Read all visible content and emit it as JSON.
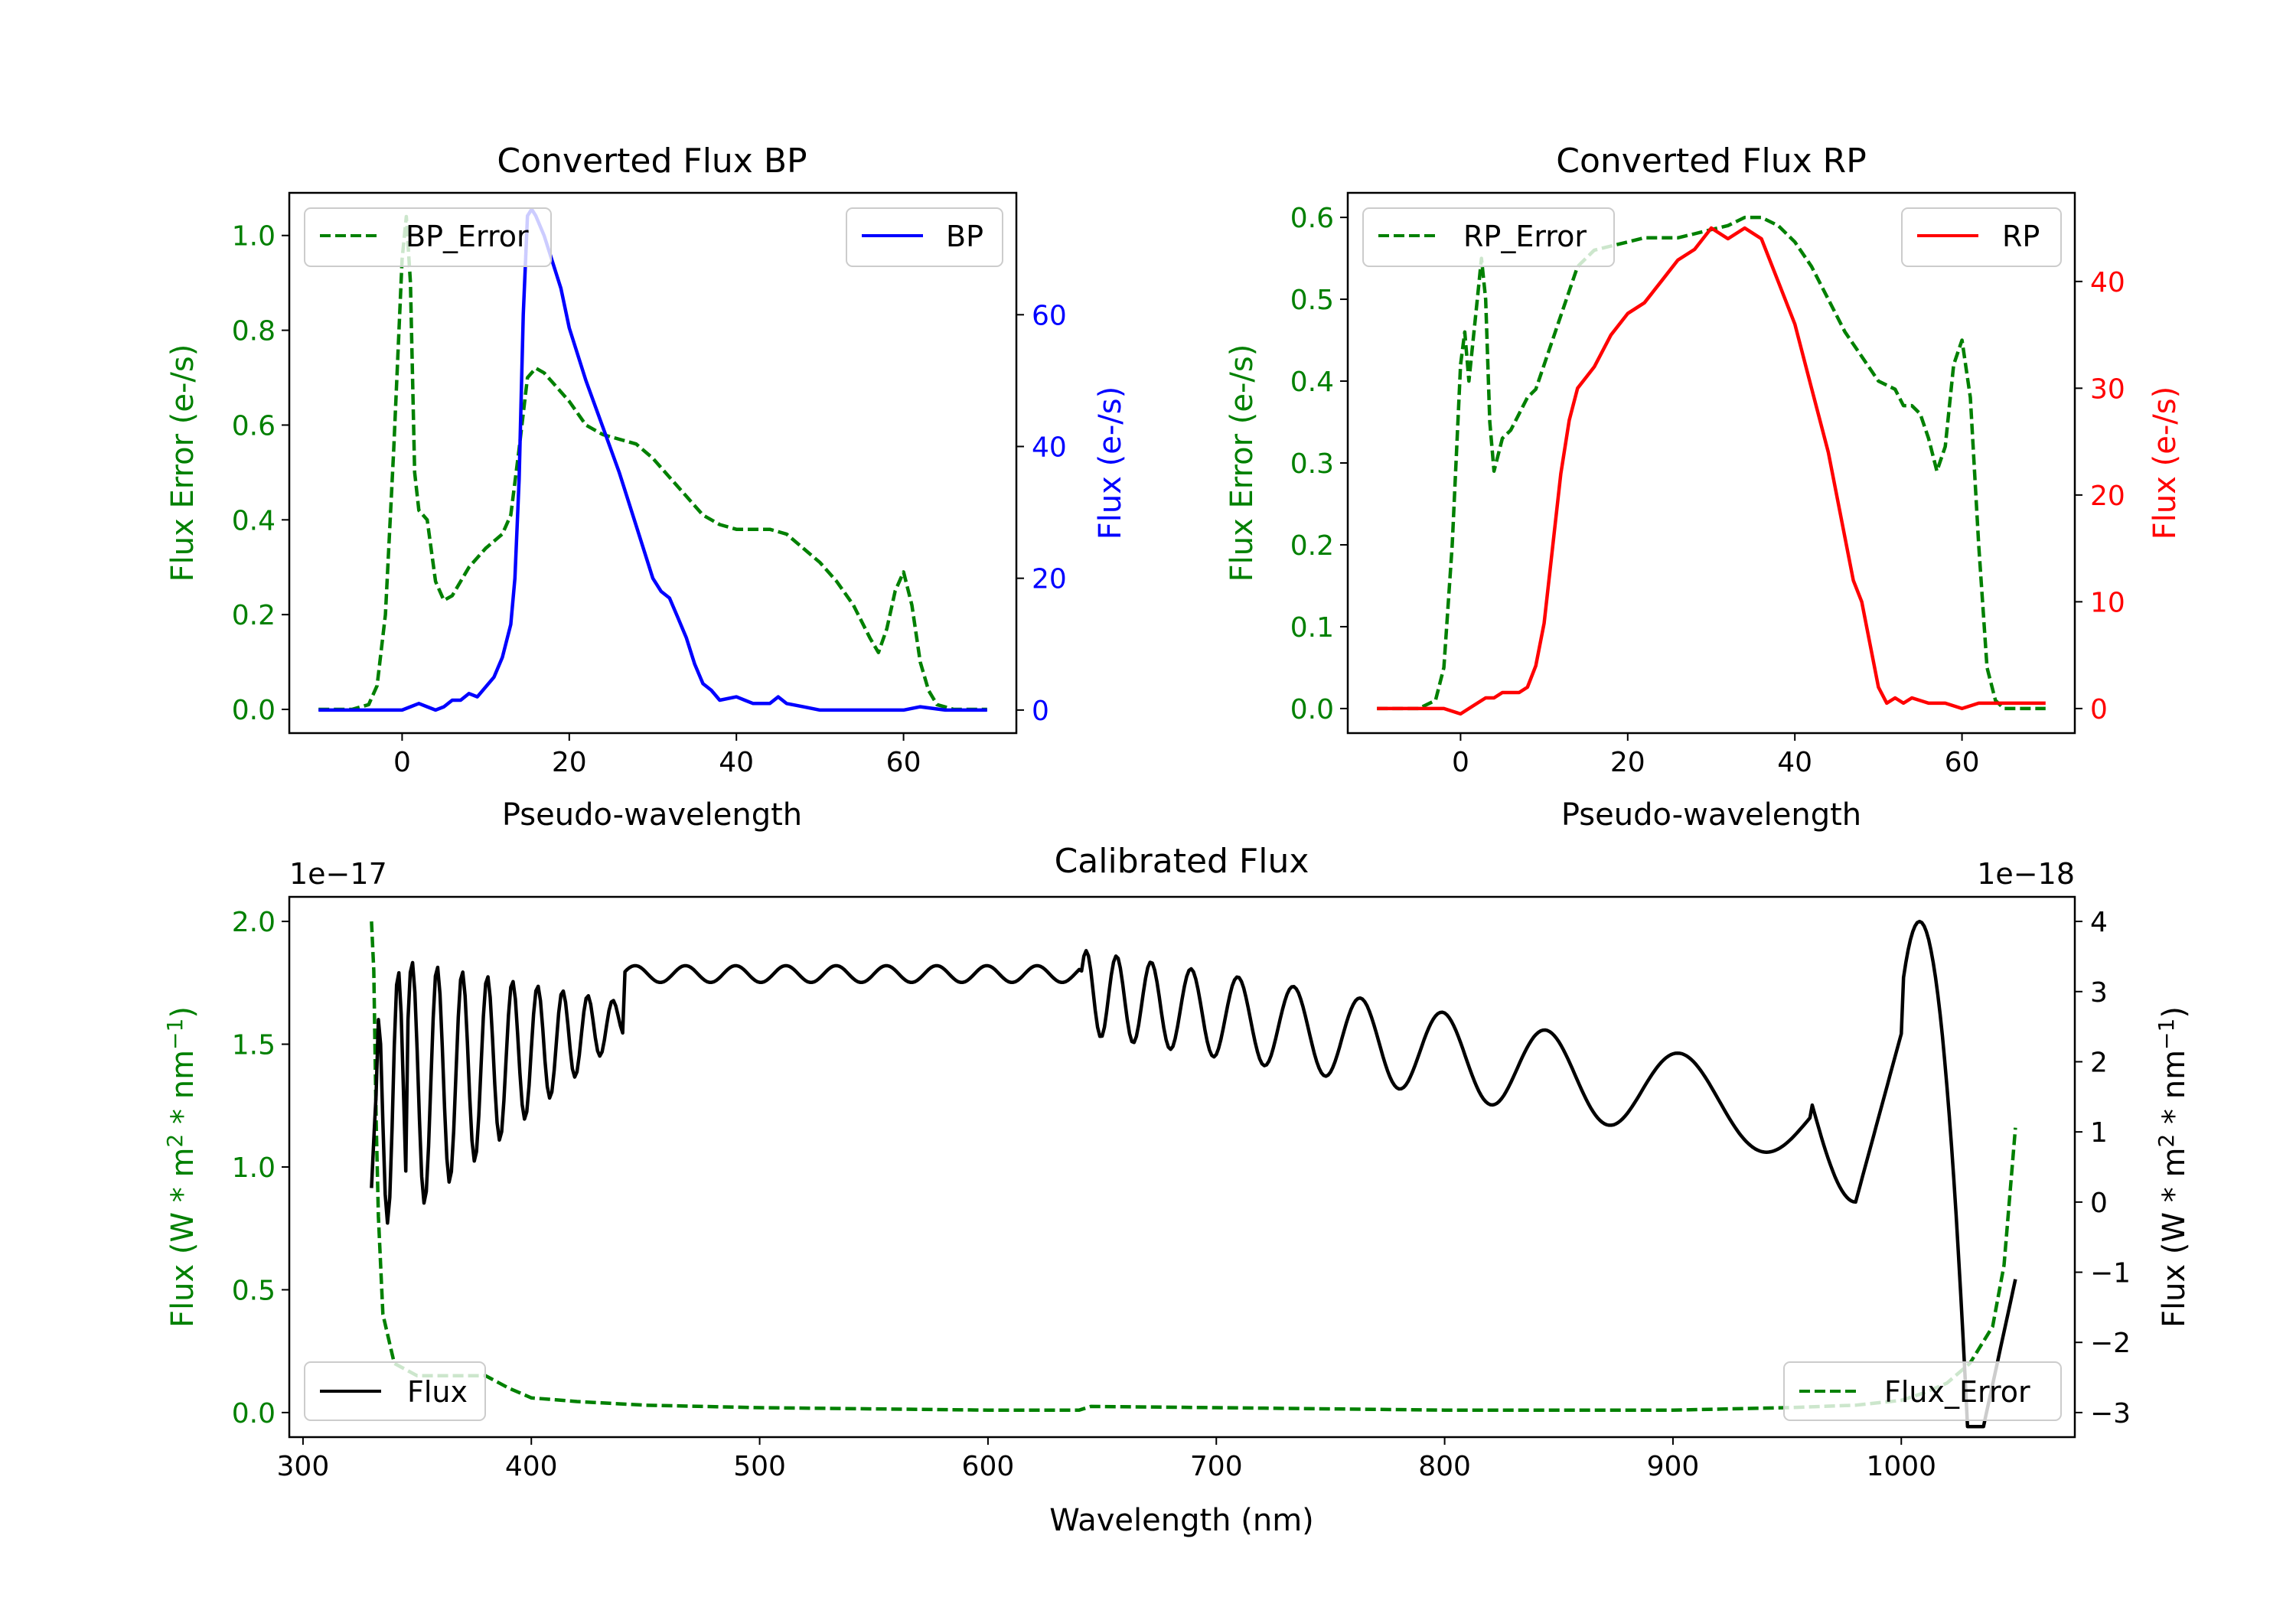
{
  "colors": {
    "green": "#008000",
    "blue": "#0000ff",
    "red": "#ff0000",
    "black": "#000000"
  },
  "chart_data": [
    {
      "type": "line",
      "title": "Converted Flux BP",
      "xlabel": "Pseudo-wavelength",
      "ylabel_left": "Flux Error (e-/s)",
      "ylabel_right": "Flux (e-/s)",
      "xlim": [
        -13.5,
        73.5
      ],
      "ylim_left": [
        -0.05,
        1.09
      ],
      "ylim_right": [
        -3.5,
        78.5
      ],
      "xticks": [
        0,
        20,
        40,
        60
      ],
      "yticks_left": [
        0.0,
        0.2,
        0.4,
        0.6,
        0.8,
        1.0
      ],
      "yticks_right": [
        0,
        20,
        40,
        60
      ],
      "series": [
        {
          "name": "BP_Error",
          "axis": "left",
          "color": "green",
          "style": "dashed",
          "x": [
            -10,
            -6,
            -4,
            -3,
            -2,
            -1,
            0,
            0.5,
            1,
            1.5,
            2,
            3,
            4,
            5,
            6,
            8,
            10,
            12,
            13,
            14,
            15,
            16,
            17,
            18,
            20,
            22,
            24,
            26,
            28,
            30,
            32,
            34,
            36,
            38,
            40,
            42,
            44,
            46,
            48,
            50,
            52,
            54,
            56,
            57,
            58,
            59,
            60,
            61,
            62,
            63,
            64,
            66,
            68,
            70
          ],
          "y": [
            0.0,
            0.0,
            0.01,
            0.05,
            0.2,
            0.55,
            0.95,
            1.04,
            0.9,
            0.5,
            0.42,
            0.4,
            0.27,
            0.23,
            0.24,
            0.3,
            0.34,
            0.37,
            0.41,
            0.55,
            0.7,
            0.72,
            0.71,
            0.69,
            0.65,
            0.6,
            0.58,
            0.57,
            0.56,
            0.53,
            0.49,
            0.45,
            0.41,
            0.39,
            0.38,
            0.38,
            0.38,
            0.37,
            0.34,
            0.31,
            0.27,
            0.22,
            0.15,
            0.12,
            0.17,
            0.25,
            0.29,
            0.22,
            0.1,
            0.04,
            0.01,
            0.0,
            0.0,
            0.0
          ]
        },
        {
          "name": "BP",
          "axis": "right",
          "color": "blue",
          "style": "solid",
          "x": [
            -10,
            -5,
            -2,
            0,
            1,
            2,
            3,
            4,
            5,
            6,
            7,
            8,
            9,
            10,
            11,
            12,
            13,
            13.5,
            14,
            14.5,
            15,
            15.5,
            16,
            17,
            18,
            19,
            20,
            22,
            24,
            26,
            28,
            30,
            31,
            32,
            33,
            34,
            35,
            36,
            37,
            38,
            40,
            41,
            42,
            43,
            44,
            45,
            46,
            48,
            50,
            55,
            60,
            62,
            65,
            70
          ],
          "y": [
            0,
            0,
            0,
            0,
            0.5,
            1,
            0.5,
            0,
            0.5,
            1.5,
            1.5,
            2.5,
            2,
            3.5,
            5,
            8,
            13,
            20,
            35,
            60,
            75,
            76,
            75,
            72,
            68,
            64,
            58,
            50,
            43,
            36,
            28,
            20,
            18,
            17,
            14,
            11,
            7,
            4,
            3,
            1.5,
            2,
            1.5,
            1,
            1,
            1,
            2,
            1,
            0.5,
            0,
            0,
            0,
            0.5,
            0,
            0
          ]
        }
      ],
      "legend": [
        {
          "label": "BP_Error",
          "location": "upper-left"
        },
        {
          "label": "BP",
          "location": "upper-right"
        }
      ]
    },
    {
      "type": "line",
      "title": "Converted Flux RP",
      "xlabel": "Pseudo-wavelength",
      "ylabel_left": "Flux Error (e-/s)",
      "ylabel_right": "Flux (e-/s)",
      "xlim": [
        -13.5,
        73.5
      ],
      "ylim_left": [
        -0.03,
        0.63
      ],
      "ylim_right": [
        -2.3,
        48.3
      ],
      "xticks": [
        0,
        20,
        40,
        60
      ],
      "yticks_left": [
        0.0,
        0.1,
        0.2,
        0.3,
        0.4,
        0.5,
        0.6
      ],
      "yticks_right": [
        0,
        10,
        20,
        30,
        40
      ],
      "series": [
        {
          "name": "RP_Error",
          "axis": "left",
          "color": "green",
          "style": "dashed",
          "x": [
            -10,
            -5,
            -3,
            -2,
            -1,
            0,
            0.5,
            1,
            2,
            2.5,
            3,
            3.5,
            4,
            5,
            6,
            7,
            8,
            9,
            10,
            12,
            14,
            16,
            18,
            20,
            22,
            24,
            26,
            28,
            30,
            32,
            34,
            36,
            38,
            40,
            42,
            44,
            46,
            48,
            50,
            52,
            53,
            54,
            55,
            56,
            57,
            58,
            59,
            60,
            61,
            62,
            63,
            64,
            65,
            70
          ],
          "y": [
            0.0,
            0.0,
            0.01,
            0.05,
            0.2,
            0.42,
            0.46,
            0.4,
            0.5,
            0.55,
            0.5,
            0.35,
            0.29,
            0.33,
            0.34,
            0.36,
            0.38,
            0.39,
            0.42,
            0.48,
            0.54,
            0.56,
            0.565,
            0.57,
            0.575,
            0.575,
            0.575,
            0.58,
            0.585,
            0.59,
            0.6,
            0.6,
            0.59,
            0.57,
            0.54,
            0.5,
            0.46,
            0.43,
            0.4,
            0.39,
            0.37,
            0.37,
            0.36,
            0.33,
            0.29,
            0.32,
            0.42,
            0.45,
            0.38,
            0.2,
            0.05,
            0.01,
            0.0,
            0.0
          ]
        },
        {
          "name": "RP",
          "axis": "right",
          "color": "red",
          "style": "solid",
          "x": [
            -10,
            -5,
            -2,
            0,
            1,
            2,
            3,
            4,
            5,
            6,
            7,
            8,
            9,
            10,
            11,
            12,
            13,
            14,
            15,
            16,
            18,
            20,
            22,
            24,
            26,
            28,
            30,
            32,
            34,
            36,
            38,
            40,
            42,
            44,
            46,
            47,
            48,
            49,
            50,
            51,
            52,
            53,
            54,
            56,
            58,
            60,
            62,
            65,
            70
          ],
          "y": [
            0,
            0,
            0,
            -0.5,
            0,
            0.5,
            1,
            1,
            1.5,
            1.5,
            1.5,
            2,
            4,
            8,
            15,
            22,
            27,
            30,
            31,
            32,
            35,
            37,
            38,
            40,
            42,
            43,
            45,
            44,
            45,
            44,
            40,
            36,
            30,
            24,
            16,
            12,
            10,
            6,
            2,
            0.5,
            1,
            0.5,
            1,
            0.5,
            0.5,
            0,
            0.5,
            0.5,
            0.5
          ]
        }
      ],
      "legend": [
        {
          "label": "RP_Error",
          "location": "upper-left"
        },
        {
          "label": "RP",
          "location": "upper-right"
        }
      ]
    },
    {
      "type": "line",
      "title": "Calibrated Flux",
      "xlabel": "Wavelength (nm)",
      "ylabel_left_text": "Flux (W * m",
      "ylabel_sup_1": "2",
      "ylabel_mid": " * nm",
      "ylabel_sup_2": "−1",
      "ylabel_close": ")",
      "left_offset": "1e−17",
      "right_offset": "1e−18",
      "xlim": [
        294,
        1076
      ],
      "ylim_left": [
        -0.1,
        2.1
      ],
      "ylim_right": [
        -3.35,
        4.35
      ],
      "xticks": [
        300,
        400,
        500,
        600,
        700,
        800,
        900,
        1000
      ],
      "yticks_left": [
        0.0,
        0.5,
        1.0,
        1.5,
        2.0
      ],
      "yticks_right": [
        -3,
        -2,
        -1,
        0,
        1,
        2,
        3,
        4
      ],
      "series": [
        {
          "name": "Flux_Error",
          "axis": "left",
          "color": "green",
          "style": "dashed",
          "x": [
            330,
            331,
            332,
            333,
            335,
            340,
            350,
            380,
            390,
            400,
            420,
            450,
            500,
            600,
            640,
            645,
            700,
            800,
            900,
            950,
            980,
            1000,
            1010,
            1020,
            1030,
            1040,
            1045,
            1050
          ],
          "y": [
            2.0,
            1.8,
            1.2,
            0.8,
            0.4,
            0.2,
            0.15,
            0.15,
            0.1,
            0.06,
            0.045,
            0.03,
            0.02,
            0.01,
            0.01,
            0.025,
            0.02,
            0.01,
            0.01,
            0.02,
            0.03,
            0.05,
            0.08,
            0.12,
            0.2,
            0.35,
            0.6,
            1.16
          ]
        },
        {
          "name": "Flux",
          "axis": "right",
          "color": "black",
          "style": "solid"
        }
      ],
      "legend": [
        {
          "label": "Flux",
          "location": "lower-left"
        },
        {
          "label": "Flux_Error",
          "location": "lower-right"
        }
      ]
    }
  ]
}
